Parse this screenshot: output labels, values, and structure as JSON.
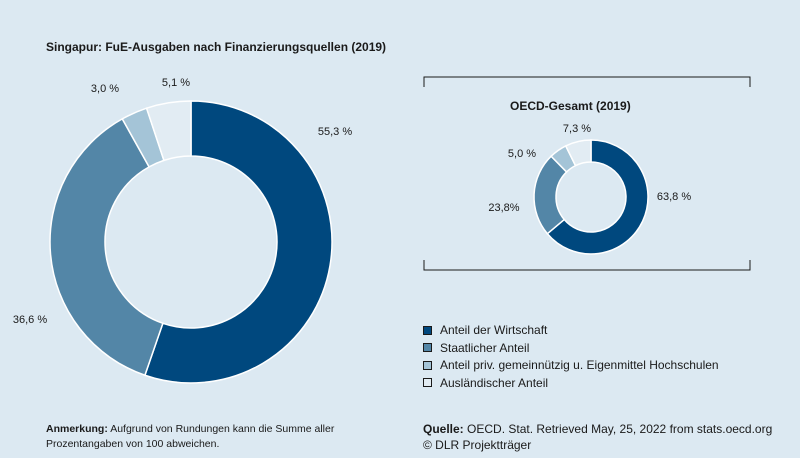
{
  "chart_data": [
    {
      "type": "pie",
      "title": "Singapur: FuE-Ausgaben nach Finanzierungsquellen (2019)",
      "categories": [
        "Anteil der Wirtschaft",
        "Staatlicher Anteil",
        "Anteil priv. gemeinnützig u. Eigenmittel Hochschulen",
        "Ausländischer Anteil"
      ],
      "values": [
        55.3,
        36.6,
        3.0,
        5.1
      ],
      "labels": [
        "55,3 %",
        "36,6 %",
        "3,0 %",
        "5,1 %"
      ],
      "colors": [
        "#00487e",
        "#5386a7",
        "#a4c4d7",
        "#e2ecf3"
      ]
    },
    {
      "type": "pie",
      "title": "OECD-Gesamt (2019)",
      "categories": [
        "Anteil der Wirtschaft",
        "Staatlicher Anteil",
        "Anteil priv. gemeinnützig u. Eigenmittel Hochschulen",
        "Ausländischer Anteil"
      ],
      "values": [
        63.8,
        23.8,
        5.0,
        7.3
      ],
      "labels": [
        "63,8 %",
        "23,8%",
        "5,0 %",
        "7,3 %"
      ],
      "colors": [
        "#00487e",
        "#5386a7",
        "#a4c4d7",
        "#e2ecf3"
      ]
    }
  ],
  "legend": [
    {
      "label": "Anteil der Wirtschaft",
      "color": "#00487e"
    },
    {
      "label": "Staatlicher Anteil",
      "color": "#5386a7"
    },
    {
      "label": "Anteil priv. gemeinnützig u. Eigenmittel Hochschulen",
      "color": "#a4c4d7"
    },
    {
      "label": "Ausländischer Anteil",
      "color": "#e2ecf3"
    }
  ],
  "note": {
    "label": "Anmerkung:",
    "text": "Aufgrund von Rundungen kann die Summe aller",
    "text2": "Prozentangaben von 100 abweichen."
  },
  "source": {
    "label": "Quelle:",
    "text": "OECD. Stat. Retrieved May, 25, 2022 from stats.oecd.org",
    "copyright": "© DLR Projektträger"
  }
}
